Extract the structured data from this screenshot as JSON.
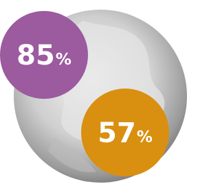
{
  "badges": [
    {
      "number": "85",
      "unit": "%",
      "color": "#9c5a9f"
    },
    {
      "number": "57",
      "unit": "%",
      "color": "#d98f10"
    }
  ]
}
